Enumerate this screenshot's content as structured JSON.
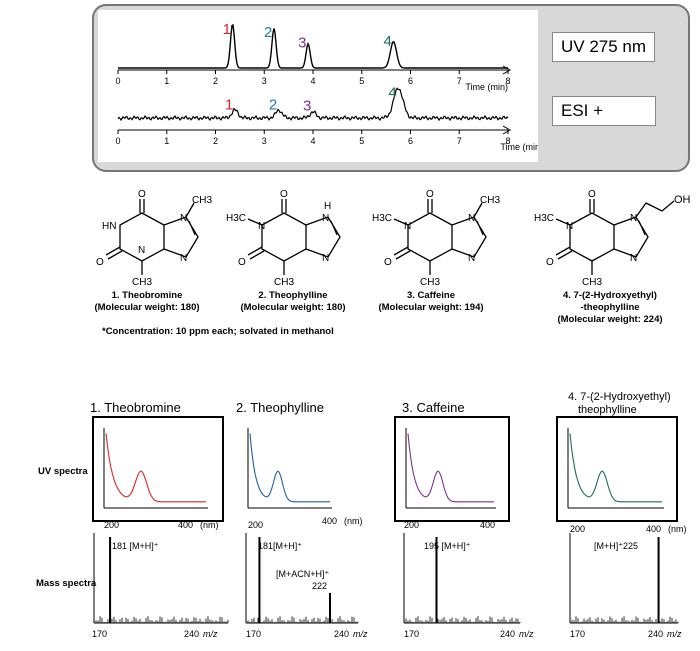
{
  "chromatogram": {
    "uv_label": "UV 275 nm",
    "esi_label": "ESI +",
    "time_label": "Time (min)",
    "ticks": [
      "0",
      "1",
      "2",
      "3",
      "4",
      "5",
      "6",
      "7",
      "8"
    ],
    "uv_trace": {
      "baseline": 0,
      "peaks": [
        {
          "label": "1",
          "time": 2.35,
          "height": 1.0,
          "color": "#d62728"
        },
        {
          "label": "2",
          "time": 3.2,
          "height": 0.9,
          "color": "#1f77b4"
        },
        {
          "label": "3",
          "time": 3.9,
          "height": 0.55,
          "color": "#7b3294"
        },
        {
          "label": "4",
          "time": 5.65,
          "height": 0.6,
          "color": "#1b6e5a"
        }
      ]
    },
    "esi_trace": {
      "peaks": [
        {
          "label": "1",
          "time": 2.4,
          "height": 0.2,
          "color": "#d62728"
        },
        {
          "label": "2",
          "time": 3.3,
          "height": 0.2,
          "color": "#1f77b4"
        },
        {
          "label": "3",
          "time": 4.0,
          "height": 0.15,
          "color": "#7b3294"
        },
        {
          "label": "4",
          "time": 5.75,
          "height": 0.75,
          "color": "#1b6e5a"
        }
      ]
    }
  },
  "compounds": [
    {
      "caption_line1": "1. Theobromine",
      "caption_line2": "(Molecular weight: 180)",
      "caption_line3": ""
    },
    {
      "caption_line1": "2. Theophylline",
      "caption_line2": "(Molecular weight: 180)",
      "caption_line3": ""
    },
    {
      "caption_line1": "3. Caffeine",
      "caption_line2": "(Molecular weight: 194)",
      "caption_line3": ""
    },
    {
      "caption_line1": "4. 7-(2-Hydroxyethyl)",
      "caption_line2": "-theophylline",
      "caption_line3": "(Molecular weight: 224)"
    }
  ],
  "structure_labels": {
    "O": "O",
    "N": "N",
    "HN": "HN",
    "H": "H",
    "CH3": "CH3",
    "H3C": "H3C",
    "OH": "OH"
  },
  "concentration_note": "*Concentration: 10 ppm each; solvated in methanol",
  "spectra_titles": [
    {
      "text": "1. Theobromine",
      "color": "#d62728"
    },
    {
      "text": "2. Theophylline",
      "color": "#1f5fa8"
    },
    {
      "text": "3. Caffeine",
      "color": "#7b3294"
    },
    {
      "text": "4. 7-(2-Hydroxyethyl)",
      "text2": "theophylline",
      "color": "#1b6e5a"
    }
  ],
  "row_labels": {
    "uv": "UV spectra",
    "mass": "Mass spectra"
  },
  "uv_axis": {
    "start": "200",
    "end": "400",
    "unit": "(nm)"
  },
  "mass_axis": {
    "start": "170",
    "end": "240",
    "unit": "m/z"
  },
  "mass_labels": [
    {
      "main": "181 [M+H]⁺",
      "extra": "",
      "extra2": ""
    },
    {
      "main": "181[M+H]⁺",
      "extra": "[M+ACN+H]⁺",
      "extra2": "222"
    },
    {
      "main": "195 [M+H]⁺",
      "extra": "",
      "extra2": ""
    },
    {
      "main": "[M+H]⁺225",
      "extra": "",
      "extra2": ""
    }
  ]
}
